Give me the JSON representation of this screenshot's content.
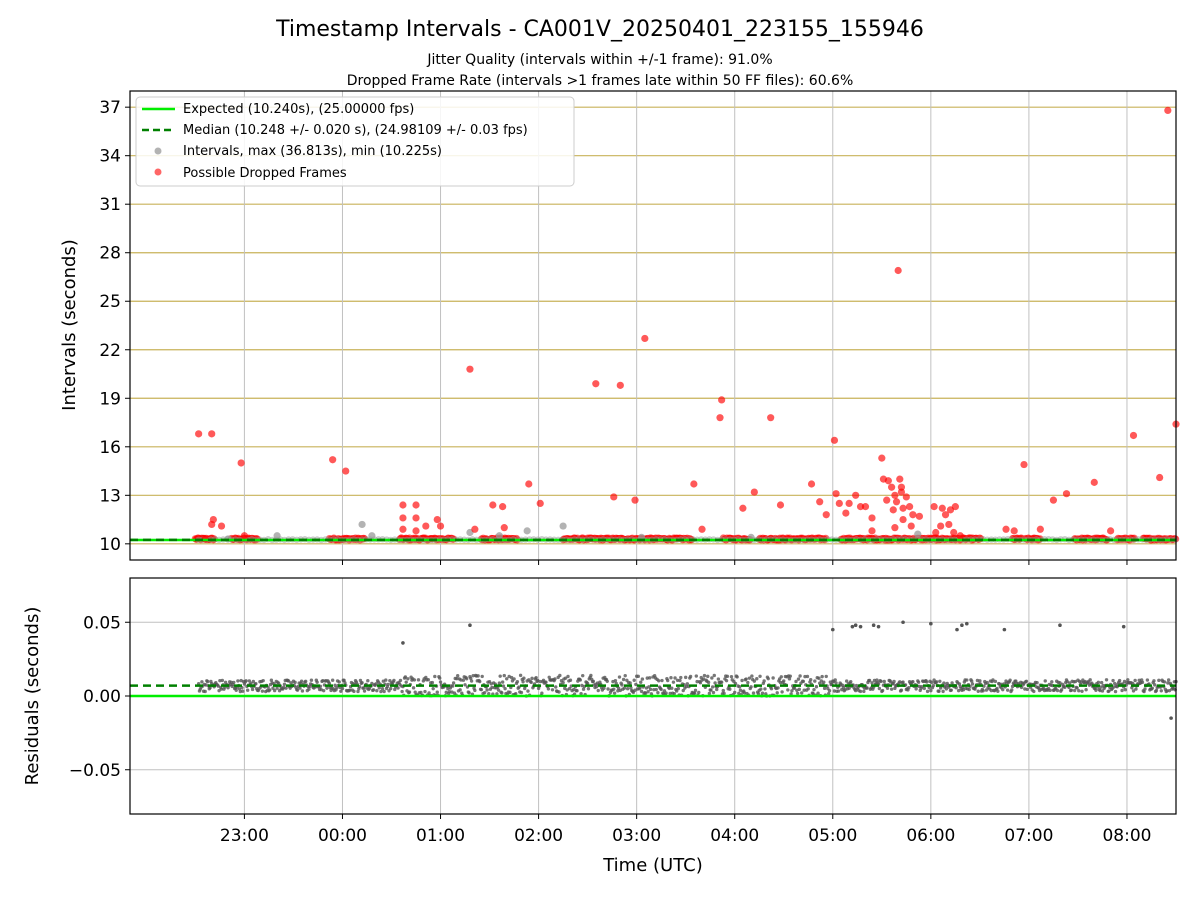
{
  "title": "Timestamp Intervals - CA001V_20250401_223155_155946",
  "subtitle_lines": [
    "Jitter Quality (intervals within +/-1 frame): 91.0%",
    "Dropped Frame Rate (intervals >1 frames late within 50 FF files): 60.6%"
  ],
  "colors": {
    "expected": "#00ee00",
    "median": "#008000",
    "interval_points": "#999999",
    "dropped_points": "#ff0000",
    "residual_points": "#555555",
    "hgrid_top": "#c8b25a",
    "grid": "#c0c0c0"
  },
  "chart_data": [
    {
      "type": "scatter",
      "name": "intervals",
      "ylabel": "Intervals (seconds)",
      "xlim": [
        -130,
        510
      ],
      "ylim": [
        9,
        38
      ],
      "yticks": [
        10,
        13,
        16,
        19,
        22,
        25,
        28,
        31,
        34,
        37
      ],
      "xticks": [
        {
          "at": -60,
          "label": "23:00"
        },
        {
          "at": 0,
          "label": "00:00"
        },
        {
          "at": 60,
          "label": "01:00"
        },
        {
          "at": 120,
          "label": "02:00"
        },
        {
          "at": 180,
          "label": "03:00"
        },
        {
          "at": 240,
          "label": "04:00"
        },
        {
          "at": 300,
          "label": "05:00"
        },
        {
          "at": 360,
          "label": "06:00"
        },
        {
          "at": 420,
          "label": "07:00"
        },
        {
          "at": 480,
          "label": "08:00"
        }
      ],
      "legend": {
        "placement": "top-left",
        "entries": [
          "Expected (10.240s), (25.00000 fps)",
          "Median (10.248 +/- 0.020 s), (24.98109 +/- 0.03 fps)",
          "Intervals, max (36.813s), min (10.225s)",
          "Possible Dropped Frames"
        ]
      },
      "expected_value": 10.24,
      "median_value": 10.248,
      "x_range": [
        -88,
        510
      ],
      "dropped_segments": [
        [
          -90,
          -78
        ],
        [
          -68,
          -52
        ],
        [
          -8,
          14
        ],
        [
          35,
          68
        ],
        [
          85,
          107
        ],
        [
          135,
          214
        ],
        [
          233,
          250
        ],
        [
          255,
          268
        ],
        [
          266,
          296
        ],
        [
          305,
          342
        ],
        [
          343,
          364
        ],
        [
          363,
          391
        ],
        [
          410,
          416
        ],
        [
          418,
          427
        ],
        [
          448,
          468
        ],
        [
          474,
          485
        ],
        [
          490,
          510
        ]
      ],
      "gray_points": [
        [
          -70,
          10.3
        ],
        [
          -40,
          10.5
        ],
        [
          12,
          11.2
        ],
        [
          18,
          10.5
        ],
        [
          78,
          10.7
        ],
        [
          96,
          10.5
        ],
        [
          113,
          10.8
        ],
        [
          135,
          11.1
        ],
        [
          183,
          10.4
        ],
        [
          250,
          10.4
        ],
        [
          352,
          10.6
        ]
      ],
      "dropped_points": [
        [
          -88,
          16.8
        ],
        [
          -80,
          16.8
        ],
        [
          -79,
          11.5
        ],
        [
          -80,
          11.2
        ],
        [
          -74,
          11.1
        ],
        [
          -84,
          10.3
        ],
        [
          -62,
          15.0
        ],
        [
          -60,
          10.5
        ],
        [
          -6,
          15.2
        ],
        [
          2,
          14.5
        ],
        [
          37,
          12.4
        ],
        [
          37,
          11.6
        ],
        [
          37,
          10.9
        ],
        [
          45,
          12.4
        ],
        [
          45,
          11.6
        ],
        [
          45,
          10.8
        ],
        [
          51,
          11.1
        ],
        [
          58,
          11.5
        ],
        [
          60,
          11.1
        ],
        [
          78,
          20.8
        ],
        [
          81,
          10.9
        ],
        [
          92,
          12.4
        ],
        [
          98,
          12.3
        ],
        [
          99,
          11.0
        ],
        [
          114,
          13.7
        ],
        [
          121,
          12.5
        ],
        [
          155,
          19.9
        ],
        [
          170,
          19.8
        ],
        [
          166,
          12.9
        ],
        [
          179,
          12.7
        ],
        [
          185,
          22.7
        ],
        [
          215,
          13.7
        ],
        [
          220,
          10.9
        ],
        [
          232,
          18.9
        ],
        [
          231,
          17.8
        ],
        [
          245,
          12.2
        ],
        [
          252,
          13.2
        ],
        [
          262,
          17.8
        ],
        [
          268,
          12.4
        ],
        [
          287,
          13.7
        ],
        [
          292,
          12.6
        ],
        [
          296,
          11.8
        ],
        [
          301,
          16.4
        ],
        [
          302,
          13.1
        ],
        [
          304,
          12.5
        ],
        [
          308,
          11.9
        ],
        [
          310,
          12.5
        ],
        [
          314,
          13.0
        ],
        [
          317,
          12.3
        ],
        [
          320,
          12.3
        ],
        [
          324,
          11.6
        ],
        [
          330,
          15.3
        ],
        [
          331,
          14.0
        ],
        [
          334,
          13.9
        ],
        [
          336,
          13.5
        ],
        [
          338,
          13.0
        ],
        [
          339,
          12.6
        ],
        [
          340,
          26.9
        ],
        [
          341,
          14.0
        ],
        [
          342,
          13.5
        ],
        [
          343,
          12.2
        ],
        [
          345,
          12.9
        ],
        [
          342,
          13.2
        ],
        [
          337,
          12.1
        ],
        [
          333,
          12.7
        ],
        [
          347,
          12.3
        ],
        [
          349,
          11.8
        ],
        [
          343,
          11.5
        ],
        [
          353,
          11.7
        ],
        [
          338,
          11.0
        ],
        [
          348,
          11.1
        ],
        [
          324,
          10.8
        ],
        [
          362,
          12.3
        ],
        [
          367,
          12.2
        ],
        [
          369,
          11.8
        ],
        [
          372,
          12.1
        ],
        [
          375,
          12.3
        ],
        [
          366,
          11.1
        ],
        [
          371,
          11.2
        ],
        [
          363,
          10.7
        ],
        [
          374,
          10.7
        ],
        [
          378,
          10.5
        ],
        [
          406,
          10.9
        ],
        [
          411,
          10.8
        ],
        [
          417,
          14.9
        ],
        [
          427,
          10.9
        ],
        [
          435,
          12.7
        ],
        [
          443,
          13.1
        ],
        [
          460,
          13.8
        ],
        [
          470,
          10.8
        ],
        [
          484,
          16.7
        ],
        [
          500,
          14.1
        ],
        [
          510,
          17.4
        ],
        [
          505,
          36.8
        ]
      ]
    },
    {
      "type": "scatter",
      "name": "residuals",
      "xlabel": "Time (UTC)",
      "ylabel": "Residuals (seconds)",
      "xlim": [
        -130,
        510
      ],
      "ylim": [
        -0.08,
        0.08
      ],
      "yticks": [
        {
          "at": -0.05,
          "label": "−0.05"
        },
        {
          "at": 0.0,
          "label": "0.00"
        },
        {
          "at": 0.05,
          "label": "0.05"
        }
      ],
      "expected_value": 0.0,
      "median_value": 0.007,
      "x_range": [
        -88,
        510
      ],
      "outlier_points": [
        [
          37,
          0.036
        ],
        [
          78,
          0.048
        ],
        [
          300,
          0.045
        ],
        [
          312,
          0.047
        ],
        [
          314,
          0.048
        ],
        [
          317,
          0.047
        ],
        [
          325,
          0.048
        ],
        [
          328,
          0.047
        ],
        [
          343,
          0.05
        ],
        [
          360,
          0.049
        ],
        [
          376,
          0.045
        ],
        [
          379,
          0.048
        ],
        [
          382,
          0.049
        ],
        [
          405,
          0.045
        ],
        [
          439,
          0.048
        ],
        [
          478,
          0.047
        ],
        [
          507,
          -0.015
        ]
      ]
    }
  ]
}
